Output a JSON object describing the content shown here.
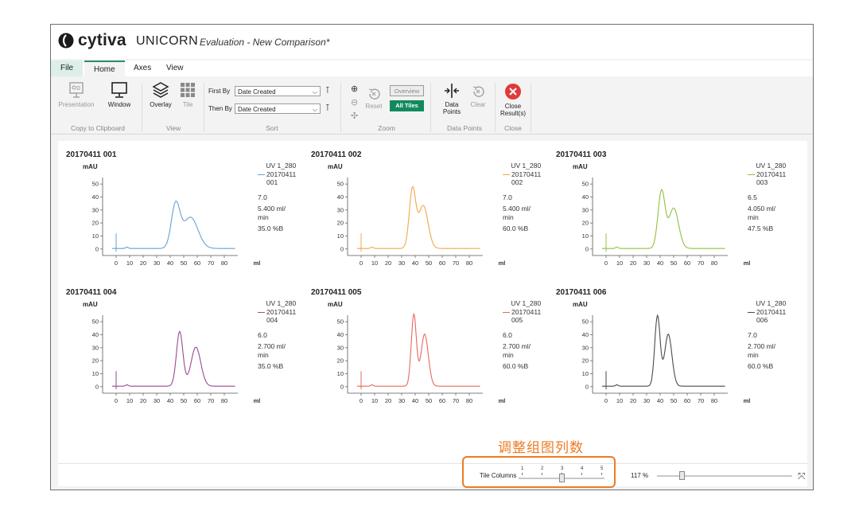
{
  "window": {
    "brand": "cytiva",
    "app": "UNICORN",
    "document": "Evaluation - New Comparison*"
  },
  "tabs": [
    "File",
    "Home",
    "Axes",
    "View"
  ],
  "ribbon": {
    "clipboard": {
      "presentation": "Presentation",
      "window": "Window",
      "group": "Copy to Clipboard"
    },
    "view": {
      "overlay": "Overlay",
      "tile": "Tile",
      "group": "View"
    },
    "sort": {
      "first_label": "First By",
      "first_value": "Date Created",
      "then_label": "Then By",
      "then_value": "Date Created",
      "group": "Sort"
    },
    "zoom": {
      "reset": "Reset",
      "overview": "Overview",
      "all_tiles": "All Tiles",
      "group": "Zoom"
    },
    "data_points": {
      "data": "Data",
      "points": "Points",
      "clear": "Clear",
      "group": "Data Points"
    },
    "close": {
      "line1": "Close",
      "line2": "Result(s)",
      "group": "Close"
    }
  },
  "chart_data": [
    {
      "type": "line",
      "title": "20170411 001",
      "ylabel": "mAU",
      "xlabel": "ml",
      "xlim": [
        -10,
        90
      ],
      "ylim": [
        -5,
        55
      ],
      "x_ticks": [
        0,
        10,
        20,
        30,
        40,
        50,
        60,
        70,
        80
      ],
      "y_ticks": [
        0,
        10,
        20,
        30,
        40,
        50
      ],
      "color": "#6a9fd0",
      "legend": [
        "UV 1_280",
        "20170411",
        "001",
        "7.0",
        "5.400 ml/",
        "min",
        "35.0 %B"
      ],
      "peaks": [
        {
          "x": 44,
          "y": 33,
          "w": 3.2
        },
        {
          "x": 55,
          "y": 24,
          "w": 5.5
        }
      ]
    },
    {
      "type": "line",
      "title": "20170411 002",
      "ylabel": "mAU",
      "xlabel": "ml",
      "xlim": [
        -10,
        90
      ],
      "ylim": [
        -5,
        55
      ],
      "x_ticks": [
        0,
        10,
        20,
        30,
        40,
        50,
        60,
        70,
        80
      ],
      "y_ticks": [
        0,
        10,
        20,
        30,
        40,
        50
      ],
      "color": "#f0a848",
      "legend": [
        "UV 1_280",
        "20170411",
        "002",
        "7.0",
        "5.400 ml/",
        "min",
        "60.0 %B"
      ],
      "peaks": [
        {
          "x": 38,
          "y": 45,
          "w": 2.4
        },
        {
          "x": 46,
          "y": 33,
          "w": 3.5
        }
      ]
    },
    {
      "type": "line",
      "title": "20170411 003",
      "ylabel": "mAU",
      "xlabel": "ml",
      "xlim": [
        -10,
        90
      ],
      "ylim": [
        -5,
        55
      ],
      "x_ticks": [
        0,
        10,
        20,
        30,
        40,
        50,
        60,
        70,
        80
      ],
      "y_ticks": [
        0,
        10,
        20,
        30,
        40,
        50
      ],
      "color": "#90c040",
      "legend": [
        "UV 1_280",
        "20170411",
        "003",
        "6.5",
        "4.050 ml/",
        "min",
        "47.5 %B"
      ],
      "peaks": [
        {
          "x": 41,
          "y": 44,
          "w": 2.6
        },
        {
          "x": 50,
          "y": 31,
          "w": 3.6
        }
      ]
    },
    {
      "type": "line",
      "title": "20170411 004",
      "ylabel": "mAU",
      "xlabel": "ml",
      "xlim": [
        -10,
        90
      ],
      "ylim": [
        -5,
        55
      ],
      "x_ticks": [
        0,
        10,
        20,
        30,
        40,
        50,
        60,
        70,
        80
      ],
      "y_ticks": [
        0,
        10,
        20,
        30,
        40,
        50
      ],
      "color": "#9a4a92",
      "legend": [
        "UV 1_280",
        "20170411",
        "004",
        "6.0",
        "2.700 ml/",
        "min",
        "35.0 %B"
      ],
      "peaks": [
        {
          "x": 47,
          "y": 42,
          "w": 2.4
        },
        {
          "x": 59,
          "y": 30,
          "w": 3.6
        }
      ]
    },
    {
      "type": "line",
      "title": "20170411 005",
      "ylabel": "mAU",
      "xlabel": "ml",
      "xlim": [
        -10,
        90
      ],
      "ylim": [
        -5,
        55
      ],
      "x_ticks": [
        0,
        10,
        20,
        30,
        40,
        50,
        60,
        70,
        80
      ],
      "y_ticks": [
        0,
        10,
        20,
        30,
        40,
        50
      ],
      "color": "#e8685c",
      "legend": [
        "UV 1_280",
        "20170411",
        "005",
        "6.0",
        "2.700 ml/",
        "min",
        "60.0 %B"
      ],
      "peaks": [
        {
          "x": 39,
          "y": 55,
          "w": 1.9
        },
        {
          "x": 47,
          "y": 40,
          "w": 2.7
        }
      ]
    },
    {
      "type": "line",
      "title": "20170411 006",
      "ylabel": "mAU",
      "xlabel": "ml",
      "xlim": [
        -10,
        90
      ],
      "ylim": [
        -5,
        55
      ],
      "x_ticks": [
        0,
        10,
        20,
        30,
        40,
        50,
        60,
        70,
        80
      ],
      "y_ticks": [
        0,
        10,
        20,
        30,
        40,
        50
      ],
      "color": "#4a4a4a",
      "legend": [
        "UV 1_280",
        "20170411",
        "006",
        "7.0",
        "2.700 ml/",
        "min",
        "60.0 %B"
      ],
      "peaks": [
        {
          "x": 38,
          "y": 54,
          "w": 2.0
        },
        {
          "x": 46,
          "y": 40,
          "w": 2.7
        }
      ]
    }
  ],
  "statusbar": {
    "tile_columns_label": "Tile Columns",
    "tile_columns_ticks": [
      "1",
      "2",
      "3",
      "4",
      "5"
    ],
    "tile_columns_value": 3,
    "zoom_percent": "117 %",
    "zoom_level": 0.18
  },
  "annotation": {
    "text": "调整组图列数"
  },
  "colors": {
    "accent": "#2a8a6e",
    "close_red": "#e03a3a",
    "highlight": "#ef7a23",
    "all_tiles_bg": "#138a5e"
  }
}
